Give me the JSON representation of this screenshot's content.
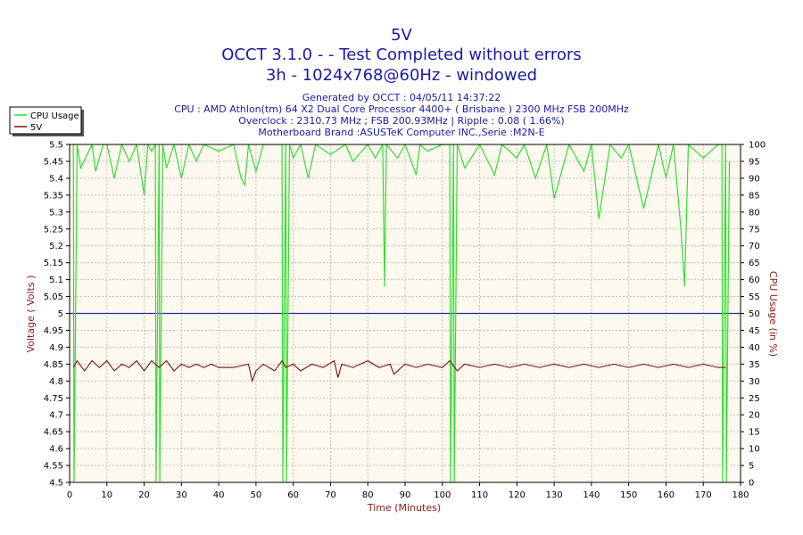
{
  "colors": {
    "title": "#1a1aa6",
    "axis_title": "#8b1a1a",
    "plot_bg": "#fdf9ee",
    "grid": "#bdbdbd",
    "cpu_series": "#33dd33",
    "voltage_series": "#7a1010",
    "reference_line": "#1f2f9a"
  },
  "chart_data": {
    "type": "line",
    "title": "5V",
    "subtitle_lines": [
      "OCCT 3.1.0 -  - Test Completed without errors",
      "3h - 1024x768@60Hz - windowed"
    ],
    "info_lines": [
      "Generated by OCCT : 04/05/11 14:37:22",
      "CPU : AMD Athlon(tm) 64 X2 Dual Core Processor 4400+ ( Brisbane ) 2300 MHz FSB 200MHz",
      "Overclock : 2310.73 MHz ; FSB 200.93MHz | Ripple : 0.08 ( 1.66%)",
      "Motherboard Brand :ASUSTeK Computer INC.,Serie :M2N-E"
    ],
    "xlabel": "Time (Minutes)",
    "ylabel_left": "Voltage ( Volts )",
    "ylabel_right": "CPU Usage (in %)",
    "xlim": [
      0,
      180
    ],
    "ylim_left": [
      4.5,
      5.5
    ],
    "ylim_right": [
      0,
      100
    ],
    "grid": true,
    "legend_position": "top-left",
    "x_ticks": [
      0,
      10,
      20,
      30,
      40,
      50,
      60,
      70,
      80,
      90,
      100,
      110,
      120,
      130,
      140,
      150,
      160,
      170,
      180
    ],
    "y_left_ticks": [
      "4.5",
      "4.55",
      "4.6",
      "4.65",
      "4.7",
      "4.75",
      "4.8",
      "4.85",
      "4.9",
      "4.95",
      "5",
      "5.05",
      "5.1",
      "5.15",
      "5.2",
      "5.25",
      "5.3",
      "5.35",
      "5.4",
      "5.45",
      "5.5"
    ],
    "y_right_ticks": [
      0,
      5,
      10,
      15,
      20,
      25,
      30,
      35,
      40,
      45,
      50,
      55,
      60,
      65,
      70,
      75,
      80,
      85,
      90,
      95,
      100
    ],
    "reference_line": {
      "axis": "left",
      "value": 5.0
    },
    "series": [
      {
        "name": "CPU Usage",
        "axis": "right",
        "x": [
          0,
          1,
          1.2,
          2,
          3,
          6,
          7,
          8,
          9,
          10,
          12,
          14,
          16,
          18,
          20,
          21,
          22,
          23,
          23.2,
          24,
          24.2,
          25,
          26,
          28,
          30,
          32,
          34,
          36,
          40,
          44,
          46,
          47,
          48,
          50,
          52,
          56,
          57,
          57.2,
          58,
          58.2,
          59,
          60,
          62,
          64,
          66,
          70,
          74,
          76,
          80,
          82,
          84,
          84.5,
          85,
          88,
          90,
          93,
          94,
          96,
          100,
          102,
          102.2,
          103,
          103.2,
          104,
          106,
          110,
          114,
          116,
          120,
          122,
          125,
          128,
          130,
          134,
          138,
          140,
          142,
          145,
          148,
          150,
          154,
          158,
          160,
          162,
          164,
          165,
          166,
          170,
          174,
          175,
          175.2,
          176,
          176.2,
          177
        ],
        "values": [
          100,
          100,
          0,
          100,
          93,
          100,
          92,
          96,
          100,
          100,
          90,
          100,
          95,
          100,
          85,
          100,
          98,
          100,
          0,
          100,
          0,
          100,
          93,
          100,
          90,
          100,
          95,
          100,
          98,
          100,
          90,
          88,
          100,
          92,
          100,
          100,
          100,
          0,
          100,
          0,
          100,
          96,
          100,
          90,
          100,
          97,
          100,
          95,
          100,
          96,
          100,
          58,
          100,
          96,
          100,
          91,
          100,
          98,
          100,
          100,
          0,
          100,
          0,
          100,
          93,
          100,
          91,
          100,
          96,
          100,
          90,
          100,
          84,
          100,
          92,
          100,
          78,
          100,
          96,
          100,
          81,
          100,
          90,
          100,
          75,
          58,
          100,
          96,
          100,
          100,
          0,
          100,
          0,
          95
        ]
      },
      {
        "name": "5V",
        "axis": "left",
        "x": [
          1,
          2,
          4,
          6,
          8,
          10,
          12,
          14,
          16,
          18,
          20,
          22,
          24,
          26,
          28,
          30,
          32,
          34,
          36,
          38,
          40,
          44,
          48,
          49,
          50,
          52,
          55,
          57,
          58,
          60,
          62,
          65,
          68,
          71,
          72,
          73,
          76,
          80,
          83,
          86,
          87,
          90,
          93,
          96,
          100,
          102,
          104,
          106,
          110,
          114,
          118,
          122,
          126,
          130,
          134,
          138,
          142,
          146,
          150,
          154,
          158,
          162,
          166,
          170,
          174,
          176
        ],
        "values": [
          4.84,
          4.86,
          4.83,
          4.86,
          4.84,
          4.86,
          4.83,
          4.85,
          4.84,
          4.86,
          4.83,
          4.86,
          4.84,
          4.86,
          4.83,
          4.85,
          4.84,
          4.85,
          4.84,
          4.85,
          4.84,
          4.84,
          4.85,
          4.8,
          4.83,
          4.85,
          4.83,
          4.86,
          4.84,
          4.85,
          4.83,
          4.85,
          4.84,
          4.86,
          4.81,
          4.85,
          4.84,
          4.86,
          4.84,
          4.85,
          4.82,
          4.85,
          4.84,
          4.85,
          4.84,
          4.86,
          4.83,
          4.85,
          4.84,
          4.85,
          4.84,
          4.85,
          4.84,
          4.85,
          4.84,
          4.85,
          4.84,
          4.85,
          4.84,
          4.85,
          4.84,
          4.85,
          4.84,
          4.85,
          4.84,
          4.84
        ]
      }
    ]
  }
}
